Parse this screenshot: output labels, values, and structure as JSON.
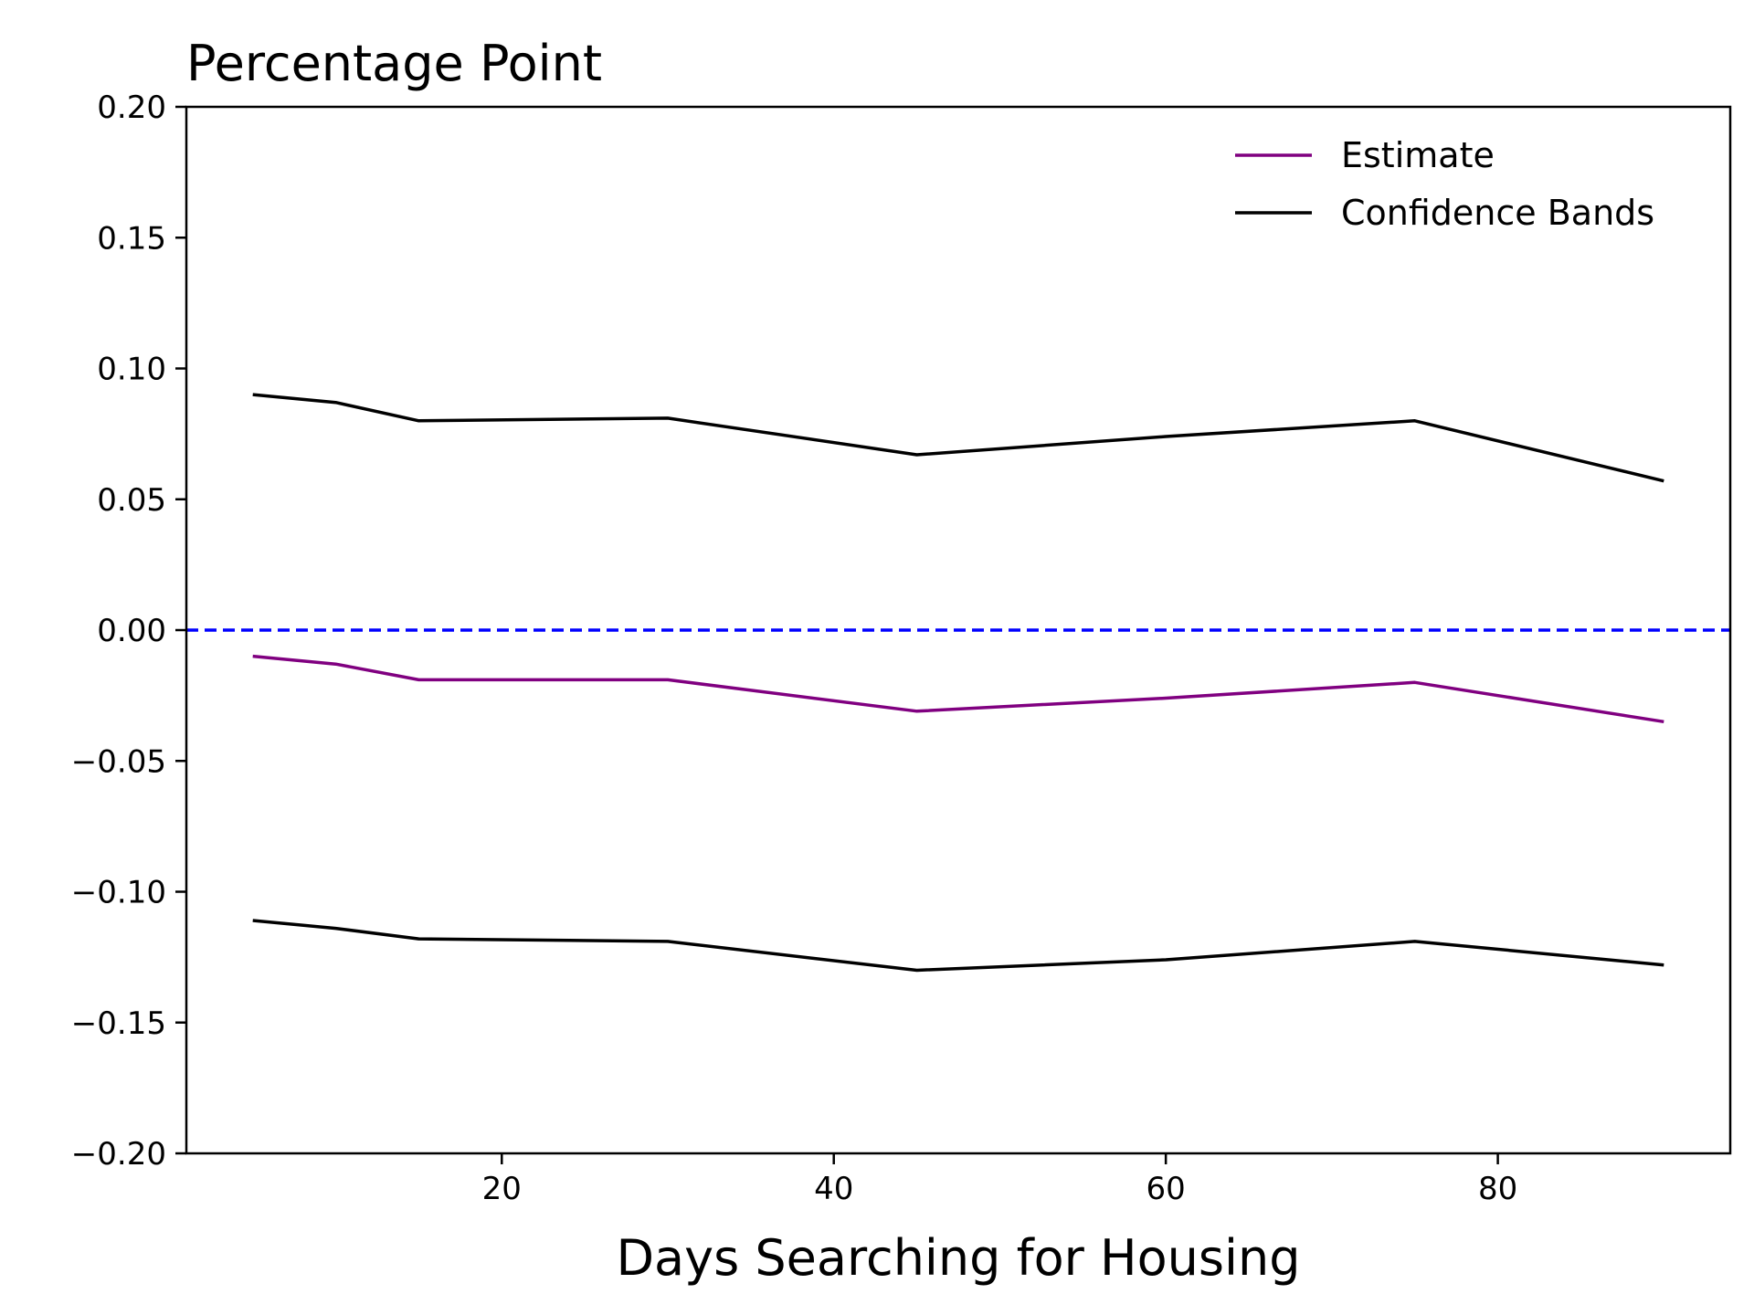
{
  "chart_data": {
    "type": "line",
    "title": "Percentage Point",
    "xlabel": "Days Searching for Housing",
    "ylabel": "",
    "xlim": [
      1,
      94
    ],
    "ylim": [
      -0.2,
      0.2
    ],
    "xticks": [
      20,
      40,
      60,
      80
    ],
    "xtick_labels": [
      "20",
      "40",
      "60",
      "80"
    ],
    "yticks": [
      0.2,
      0.15,
      0.1,
      0.05,
      0.0,
      -0.05,
      -0.1,
      -0.15,
      -0.2
    ],
    "ytick_labels": [
      "0.20",
      "0.15",
      "0.10",
      "0.05",
      "0.00",
      "−0.05",
      "−0.10",
      "−0.15",
      "−0.20"
    ],
    "grid": false,
    "legend_position": "top-right",
    "legend": [
      {
        "label": "Estimate",
        "color": "#800080"
      },
      {
        "label": "Confidence Bands",
        "color": "#000000"
      }
    ],
    "x": [
      5,
      10,
      15,
      30,
      45,
      60,
      75,
      90
    ],
    "series": [
      {
        "name": "Estimate",
        "role": "estimate",
        "color": "#800080",
        "values": [
          -0.01,
          -0.013,
          -0.019,
          -0.019,
          -0.031,
          -0.026,
          -0.02,
          -0.035
        ]
      },
      {
        "name": "Confidence Bands",
        "role": "upper",
        "color": "#000000",
        "values": [
          0.09,
          0.087,
          0.08,
          0.081,
          0.067,
          0.074,
          0.08,
          0.057
        ]
      },
      {
        "name": "Confidence Bands",
        "role": "lower",
        "color": "#000000",
        "values": [
          -0.111,
          -0.114,
          -0.118,
          -0.119,
          -0.13,
          -0.126,
          -0.119,
          -0.128
        ]
      }
    ],
    "reference_line": {
      "y": 0.0,
      "color": "#0000ff",
      "style": "dashed"
    }
  }
}
